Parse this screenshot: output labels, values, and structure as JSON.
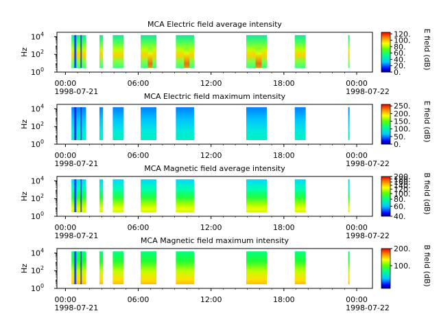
{
  "chart_data": [
    {
      "type": "heatmap",
      "title": "MCA  Electric field average intensity",
      "ylabel": "Hz",
      "y_ticks": [
        {
          "base": "10",
          "exp": "0"
        },
        {
          "base": "10",
          "exp": "2"
        },
        {
          "base": "10",
          "exp": "4"
        }
      ],
      "ylim": [
        1,
        31623
      ],
      "y_scale": "log",
      "x_ticks": [
        "00:00",
        "06:00",
        "12:00",
        "18:00",
        "00:00"
      ],
      "x_dates": [
        "1998-07-21",
        "1998-07-22"
      ],
      "colorbar": {
        "label": "E field (dB)",
        "ticks": [
          "0.",
          "20.",
          "40.",
          "60.",
          "80.",
          "100.",
          "120."
        ],
        "range": [
          0,
          125
        ],
        "log": false
      },
      "data_segments_hours": [
        [
          0.5,
          1.7
        ],
        [
          2.8,
          3.1
        ],
        [
          3.9,
          4.8
        ],
        [
          6.2,
          7.5
        ],
        [
          9.1,
          10.6
        ],
        [
          14.9,
          16.6
        ],
        [
          18.9,
          19.8
        ],
        [
          23.3,
          23.4
        ]
      ],
      "intensity_profile": "hot"
    },
    {
      "type": "heatmap",
      "title": "MCA  Electric field maximum intensity",
      "ylabel": "Hz",
      "y_ticks": [
        {
          "base": "10",
          "exp": "0"
        },
        {
          "base": "10",
          "exp": "2"
        },
        {
          "base": "10",
          "exp": "4"
        }
      ],
      "ylim": [
        1,
        31623
      ],
      "y_scale": "log",
      "x_ticks": [
        "00:00",
        "06:00",
        "12:00",
        "18:00",
        "00:00"
      ],
      "x_dates": [
        "1998-07-21",
        "1998-07-22"
      ],
      "colorbar": {
        "label": "E field (dB)",
        "ticks": [
          "0.",
          "50.",
          "100.",
          "150.",
          "200.",
          "250."
        ],
        "range": [
          0,
          260
        ],
        "log": false
      },
      "data_segments_hours": [
        [
          0.5,
          1.7
        ],
        [
          2.8,
          3.1
        ],
        [
          3.9,
          4.8
        ],
        [
          6.2,
          7.5
        ],
        [
          9.1,
          10.6
        ],
        [
          14.9,
          16.6
        ],
        [
          18.9,
          19.8
        ],
        [
          23.3,
          23.4
        ]
      ],
      "intensity_profile": "cool"
    },
    {
      "type": "heatmap",
      "title": "MCA  Magnetic field average intensity",
      "ylabel": "Hz",
      "y_ticks": [
        {
          "base": "10",
          "exp": "0"
        },
        {
          "base": "10",
          "exp": "2"
        },
        {
          "base": "10",
          "exp": "4"
        }
      ],
      "ylim": [
        1,
        31623
      ],
      "y_scale": "log",
      "x_ticks": [
        "00:00",
        "06:00",
        "12:00",
        "18:00",
        "00:00"
      ],
      "x_dates": [
        "1998-07-21",
        "1998-07-22"
      ],
      "colorbar": {
        "label": "B field (dB)",
        "ticks": [
          "40.",
          "60.",
          "80.",
          "100.",
          "120.",
          "140.",
          "160.",
          "180.",
          "200."
        ],
        "range": [
          40,
          200
        ],
        "log": true
      },
      "data_segments_hours": [
        [
          0.5,
          1.7
        ],
        [
          2.8,
          3.1
        ],
        [
          3.9,
          4.8
        ],
        [
          6.2,
          7.5
        ],
        [
          9.1,
          10.6
        ],
        [
          14.9,
          16.6
        ],
        [
          18.9,
          19.8
        ],
        [
          23.3,
          23.4
        ]
      ],
      "intensity_profile": "gradient"
    },
    {
      "type": "heatmap",
      "title": "MCA  Magnetic field maximum intensity",
      "ylabel": "Hz",
      "y_ticks": [
        {
          "base": "10",
          "exp": "0"
        },
        {
          "base": "10",
          "exp": "2"
        },
        {
          "base": "10",
          "exp": "4"
        }
      ],
      "ylim": [
        1,
        31623
      ],
      "y_scale": "log",
      "x_ticks": [
        "00:00",
        "06:00",
        "12:00",
        "18:00",
        "00:00"
      ],
      "x_dates": [
        "1998-07-21",
        "1998-07-22"
      ],
      "colorbar": {
        "label": "B field (dB)",
        "ticks": [
          "100.",
          "200."
        ],
        "range": [
          40,
          200
        ],
        "log": true
      },
      "data_segments_hours": [
        [
          0.5,
          1.7
        ],
        [
          2.8,
          3.1
        ],
        [
          3.9,
          4.8
        ],
        [
          6.2,
          7.5
        ],
        [
          9.1,
          10.6
        ],
        [
          14.9,
          16.6
        ],
        [
          18.9,
          19.8
        ],
        [
          23.3,
          23.4
        ]
      ],
      "intensity_profile": "gradient-hot"
    }
  ]
}
